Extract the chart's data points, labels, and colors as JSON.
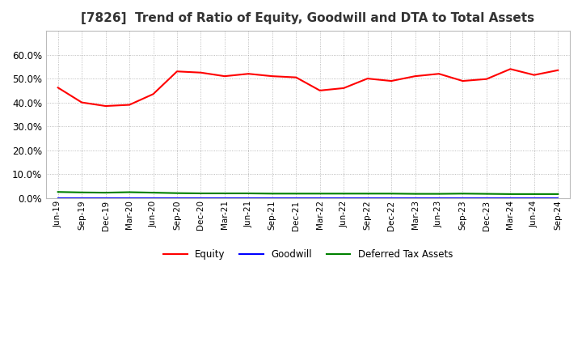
{
  "title": "[7826]  Trend of Ratio of Equity, Goodwill and DTA to Total Assets",
  "x_labels": [
    "Jun-19",
    "Sep-19",
    "Dec-19",
    "Mar-20",
    "Jun-20",
    "Sep-20",
    "Dec-20",
    "Mar-21",
    "Jun-21",
    "Sep-21",
    "Dec-21",
    "Mar-22",
    "Jun-22",
    "Sep-22",
    "Dec-22",
    "Mar-23",
    "Jun-23",
    "Sep-23",
    "Dec-23",
    "Mar-24",
    "Jun-24",
    "Sep-24"
  ],
  "equity": [
    0.462,
    0.4,
    0.385,
    0.39,
    0.435,
    0.53,
    0.525,
    0.51,
    0.52,
    0.51,
    0.505,
    0.45,
    0.46,
    0.5,
    0.49,
    0.51,
    0.52,
    0.49,
    0.498,
    0.54,
    0.515,
    0.535
  ],
  "goodwill": [
    0.0,
    0.0,
    0.0,
    0.0,
    0.0,
    0.0,
    0.0,
    0.0,
    0.0,
    0.0,
    0.0,
    0.0,
    0.0,
    0.0,
    0.0,
    0.0,
    0.0,
    0.0,
    0.0,
    0.0,
    0.0,
    0.0
  ],
  "dta": [
    0.025,
    0.023,
    0.022,
    0.024,
    0.022,
    0.02,
    0.019,
    0.019,
    0.019,
    0.018,
    0.018,
    0.018,
    0.018,
    0.018,
    0.018,
    0.017,
    0.017,
    0.018,
    0.017,
    0.016,
    0.016,
    0.016
  ],
  "equity_color": "#ff0000",
  "goodwill_color": "#0000ff",
  "dta_color": "#008000",
  "ylim": [
    0.0,
    0.7
  ],
  "yticks": [
    0.0,
    0.1,
    0.2,
    0.3,
    0.4,
    0.5,
    0.6
  ],
  "background_color": "#ffffff",
  "grid_color": "#aaaaaa",
  "title_fontsize": 11
}
